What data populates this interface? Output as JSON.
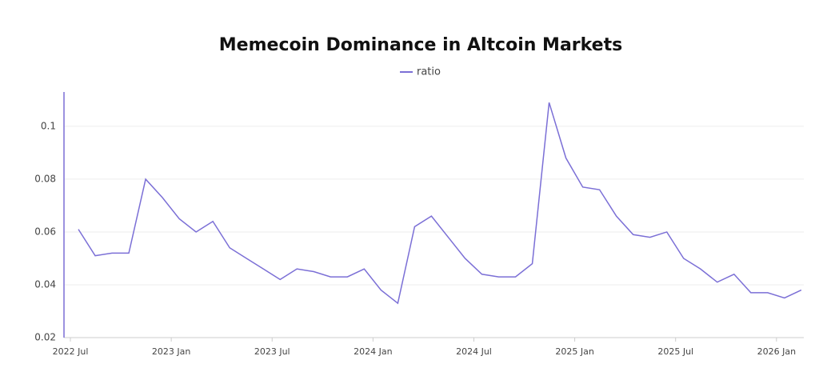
{
  "chart_data": {
    "type": "line",
    "title": "Memecoin Dominance in Altcoin Markets",
    "x": [
      "2022-07",
      "2022-08",
      "2022-09",
      "2022-10",
      "2022-11",
      "2022-12",
      "2023-01",
      "2023-02",
      "2023-03",
      "2023-04",
      "2023-05",
      "2023-06",
      "2023-07",
      "2023-08",
      "2023-09",
      "2023-10",
      "2023-11",
      "2023-12",
      "2024-01",
      "2024-02",
      "2024-03",
      "2024-04",
      "2024-05",
      "2024-06",
      "2024-07",
      "2024-08",
      "2024-09",
      "2024-10",
      "2024-11",
      "2024-12",
      "2025-01",
      "2025-02",
      "2025-03",
      "2025-04",
      "2025-05",
      "2025-06",
      "2025-07",
      "2025-08",
      "2025-09",
      "2025-10",
      "2025-11",
      "2025-12",
      "2026-01",
      "2026-02"
    ],
    "series": [
      {
        "name": "ratio",
        "color": "#7b6fd6",
        "values": [
          0.061,
          0.051,
          0.052,
          0.052,
          0.08,
          0.073,
          0.065,
          0.06,
          0.064,
          0.054,
          0.05,
          0.046,
          0.042,
          0.046,
          0.045,
          0.043,
          0.043,
          0.046,
          0.038,
          0.033,
          0.062,
          0.066,
          0.058,
          0.05,
          0.044,
          0.043,
          0.043,
          0.048,
          0.109,
          0.088,
          0.077,
          0.076,
          0.066,
          0.059,
          0.058,
          0.06,
          0.05,
          0.046,
          0.041,
          0.044,
          0.037,
          0.037,
          0.035,
          0.038
        ]
      }
    ],
    "xticks": [
      {
        "value": "2022-07",
        "label": "2022 Jul"
      },
      {
        "value": "2023-01",
        "label": "2023 Jan"
      },
      {
        "value": "2023-07",
        "label": "2023 Jul"
      },
      {
        "value": "2024-01",
        "label": "2024 Jan"
      },
      {
        "value": "2024-07",
        "label": "2024 Jul"
      },
      {
        "value": "2025-01",
        "label": "2025 Jan"
      },
      {
        "value": "2025-07",
        "label": "2025 Jul"
      },
      {
        "value": "2026-01",
        "label": "2026 Jan"
      }
    ],
    "ylim": [
      0.02,
      0.113
    ],
    "yticks": [
      0.02,
      0.04,
      0.06,
      0.08,
      0.1
    ],
    "grid": true,
    "legend": "top"
  }
}
